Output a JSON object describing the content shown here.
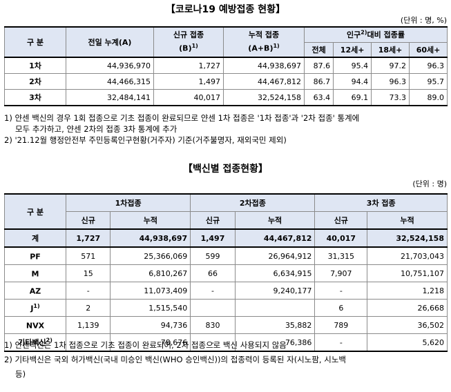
{
  "doc1": {
    "title": "【코로나19 예방접종 현황】",
    "unit": "(단위 : 명, %)",
    "headers": {
      "gubun": "구 분",
      "prev_cum": "전일 누계(A)",
      "new_line1": "신규 접종",
      "new_line2": "(B)",
      "new_sup": "1)",
      "cum_line1": "누적 접종",
      "cum_line2": "(A+B)",
      "cum_sup": "1)",
      "rate_pre": "인구",
      "rate_sup": "2)",
      "rate_post": "대비 접종률",
      "sub": [
        "전체",
        "12세+",
        "18세+",
        "60세+"
      ]
    },
    "rows": [
      {
        "label": "1차",
        "prev": "44,936,970",
        "new": "1,727",
        "cum": "44,938,697",
        "r": [
          "87.6",
          "95.4",
          "97.2",
          "96.3"
        ]
      },
      {
        "label": "2차",
        "prev": "44,466,315",
        "new": "1,497",
        "cum": "44,467,812",
        "r": [
          "86.7",
          "94.4",
          "96.3",
          "95.7"
        ]
      },
      {
        "label": "3차",
        "prev": "32,484,141",
        "new": "40,017",
        "cum": "32,524,158",
        "r": [
          "63.4",
          "69.1",
          "73.3",
          "89.0"
        ]
      }
    ],
    "notes": [
      "1) 얀센 백신의 경우 1회 접종으로 기초 접종이 완료되므로 얀센 1차 접종은 '1차 접종'과 '2차 접종' 통계에",
      "모두 추가하고, 얀센 2차의 접종 3차 통계에 추가",
      "2) '21.12월 행정안전부 주민등록인구현황(거주자) 기준(거주불명자, 재외국민 제외)"
    ]
  },
  "doc2": {
    "title": "【백신별 접종현황】",
    "unit": "(단위 : 명)",
    "headers": {
      "gubun": "구 분",
      "groups": [
        "1차접종",
        "2차접종",
        "3차 접종"
      ],
      "sub": [
        "신규",
        "누적",
        "신규",
        "누적",
        "신규",
        "누적"
      ]
    },
    "rows": [
      {
        "label": "계",
        "sup": "",
        "v": [
          "1,727",
          "44,938,697",
          "1,497",
          "44,467,812",
          "40,017",
          "32,524,158"
        ]
      },
      {
        "label": "PF",
        "sup": "",
        "v": [
          "571",
          "25,366,069",
          "599",
          "26,964,912",
          "31,315",
          "21,703,043"
        ]
      },
      {
        "label": "M",
        "sup": "",
        "v": [
          "15",
          "6,810,267",
          "66",
          "6,634,915",
          "7,907",
          "10,751,107"
        ]
      },
      {
        "label": "AZ",
        "sup": "",
        "v": [
          "-",
          "11,073,409",
          "-",
          "9,240,177",
          "-",
          "1,218"
        ]
      },
      {
        "label": "J",
        "sup": "1)",
        "v": [
          "2",
          "1,515,540",
          "",
          "",
          "6",
          "26,668"
        ]
      },
      {
        "label": "NVX",
        "sup": "",
        "v": [
          "1,139",
          "94,736",
          "830",
          "35,882",
          "789",
          "36,502"
        ]
      },
      {
        "label": "기타백신",
        "sup": "2)",
        "v": [
          "-",
          "78,676",
          "-",
          "76,386",
          "-",
          "5,620"
        ]
      }
    ],
    "notes": [
      "1) 얀센백신은 1차 접종으로 기초 접종이 완료되어, 2차 접종으로 백신 사용되지 않음",
      "2) 기타백신은 국외 허가백신(국내 미승인 백신(WHO 승인백신))의 접종력이 등록된 자(시노팜, 시노백",
      "등)"
    ]
  }
}
